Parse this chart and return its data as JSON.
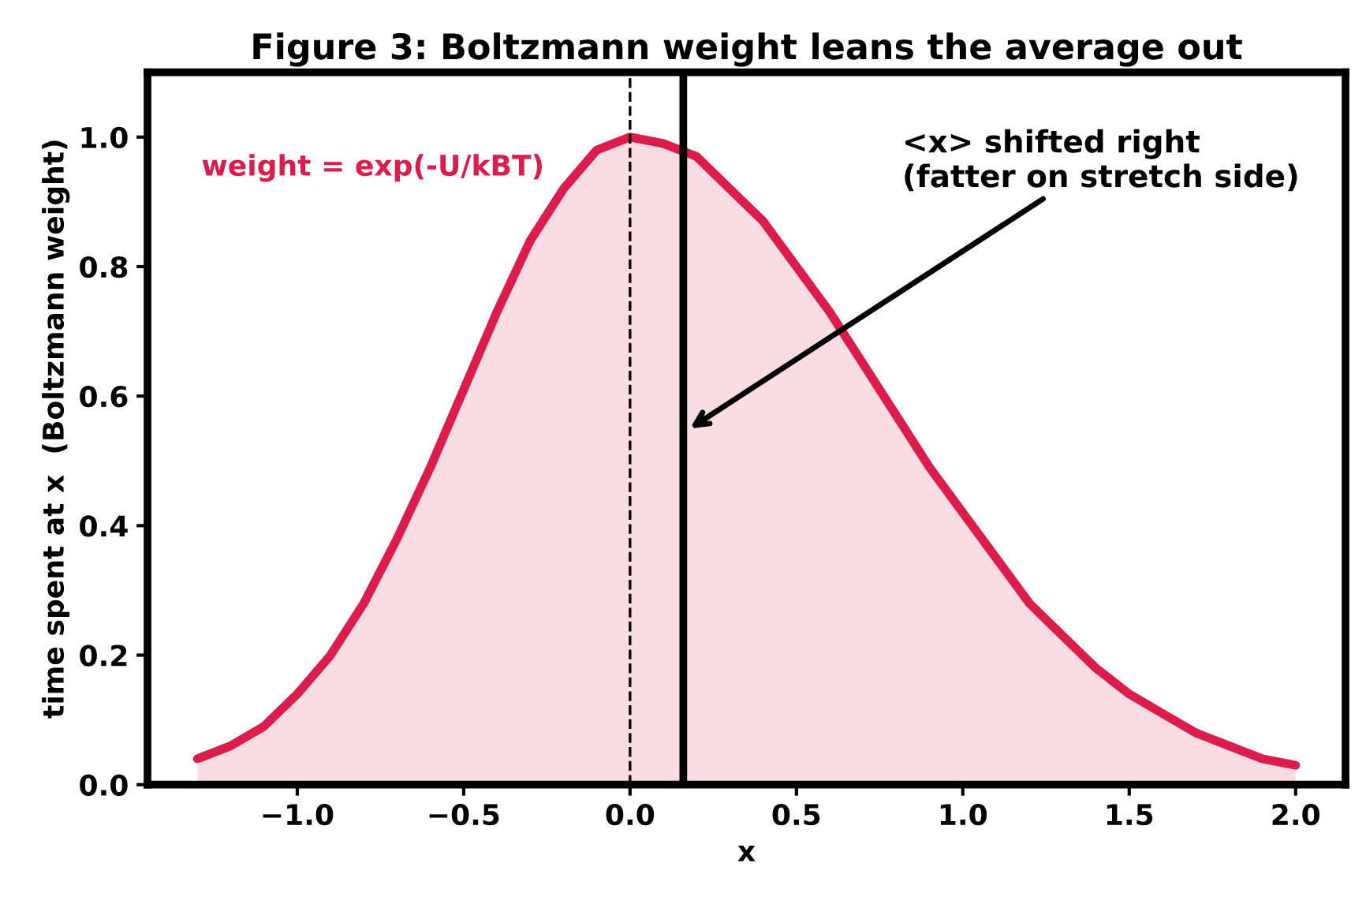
{
  "chart_data": {
    "type": "area",
    "title": "Figure 3: Boltzmann weight leans the average out",
    "xlabel": "x",
    "ylabel": "time spent at x  (Boltzmann weight)",
    "x": [
      -1.3,
      -1.2,
      -1.1,
      -1.0,
      -0.9,
      -0.8,
      -0.7,
      -0.6,
      -0.5,
      -0.4,
      -0.3,
      -0.2,
      -0.1,
      0.0,
      0.1,
      0.2,
      0.3,
      0.4,
      0.5,
      0.6,
      0.7,
      0.8,
      0.9,
      1.0,
      1.1,
      1.2,
      1.3,
      1.4,
      1.5,
      1.6,
      1.7,
      1.8,
      1.9,
      2.0
    ],
    "series": [
      {
        "name": "weight = exp(-U/kBT)",
        "color": "#dc1c4b",
        "values": [
          0.04,
          0.06,
          0.09,
          0.14,
          0.2,
          0.28,
          0.38,
          0.49,
          0.61,
          0.73,
          0.84,
          0.92,
          0.98,
          1.0,
          0.99,
          0.97,
          0.92,
          0.87,
          0.8,
          0.73,
          0.65,
          0.57,
          0.49,
          0.42,
          0.35,
          0.28,
          0.23,
          0.18,
          0.14,
          0.11,
          0.08,
          0.06,
          0.04,
          0.03
        ]
      }
    ],
    "xlim": [
      -1.45,
      2.15
    ],
    "ylim": [
      0,
      1.1
    ],
    "xticks": [
      {
        "value": -1.0,
        "label": "−1.0"
      },
      {
        "value": -0.5,
        "label": "−0.5"
      },
      {
        "value": 0.0,
        "label": "0.0"
      },
      {
        "value": 0.5,
        "label": "0.5"
      },
      {
        "value": 1.0,
        "label": "1.0"
      },
      {
        "value": 1.5,
        "label": "1.5"
      },
      {
        "value": 2.0,
        "label": "2.0"
      }
    ],
    "yticks": [
      {
        "value": 0.0,
        "label": "0.0"
      },
      {
        "value": 0.2,
        "label": "0.2"
      },
      {
        "value": 0.4,
        "label": "0.4"
      },
      {
        "value": 0.6,
        "label": "0.6"
      },
      {
        "value": 0.8,
        "label": "0.8"
      },
      {
        "value": 1.0,
        "label": "1.0"
      }
    ],
    "ref_lines": [
      {
        "axis": "x",
        "value": 0.0,
        "color": "#000000",
        "line_style": "dashed"
      },
      {
        "axis": "x",
        "value": 0.16,
        "color": "#000000",
        "line_style": "solid"
      }
    ],
    "annotations": [
      {
        "text": "<x> shifted right\n(fatter on stretch side)",
        "x": 0.18,
        "y": 0.55
      }
    ],
    "grid": false,
    "legend": false,
    "marker": "none",
    "line_style": "solid"
  }
}
